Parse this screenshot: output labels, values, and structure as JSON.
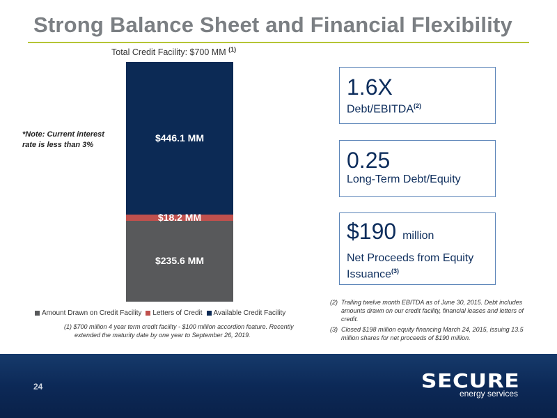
{
  "slide": {
    "title": "Strong Balance Sheet and Financial Flexibility",
    "page_number": "24"
  },
  "chart_data": {
    "type": "bar",
    "title": "Total Credit Facility: $700 MM",
    "title_footnote": "(1)",
    "categories": [
      ""
    ],
    "stacked": true,
    "series": [
      {
        "name": "Amount Drawn on Credit Facility",
        "values": [
          235.6
        ],
        "label": "$235.6 MM",
        "color": "#58595b"
      },
      {
        "name": "Letters of Credit",
        "values": [
          18.2
        ],
        "label": "$18.2 MM",
        "color": "#c0504d"
      },
      {
        "name": "Available Credit Facility",
        "values": [
          446.1
        ],
        "label": "$446.1 MM",
        "color": "#0c2a55"
      }
    ],
    "ylim": [
      0,
      700
    ],
    "legend": "bottom",
    "grid": false
  },
  "note": "*Note: Current interest rate is less than 3%",
  "footnote_1": "(1) $700 million 4 year term credit facility - $100 million accordion feature. Recently extended the maturity date by one year to September 26, 2019.",
  "stats": [
    {
      "value": "1.6X",
      "unit": "",
      "label": "Debt/EBITDA",
      "sup": "(2)"
    },
    {
      "value": "0.25",
      "unit": "",
      "label": "Long-Term Debt/Equity",
      "sup": ""
    },
    {
      "value": "$190",
      "unit": "million",
      "label": "Net Proceeds from Equity Issuance",
      "sup": "(3)"
    }
  ],
  "footnotes": [
    {
      "num": "(2)",
      "text": "Trailing twelve month EBITDA as of June 30, 2015. Debt includes amounts drawn on our credit facility, financial leases and letters of credit."
    },
    {
      "num": "(3)",
      "text": "Closed $198 million equity financing March 24, 2015, issuing 13.5 million shares for net proceeds of $190 million."
    }
  ],
  "logo": {
    "name": "SECURE",
    "tagline": "energy services"
  },
  "colors": {
    "title": "#7b7f83",
    "accent_rule": "#b5c435",
    "box_border": "#5b84b8",
    "footer": "#0c2957"
  }
}
